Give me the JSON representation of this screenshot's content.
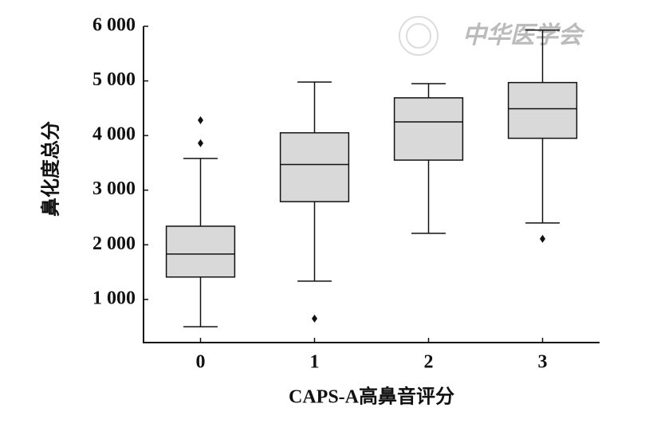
{
  "chart_data": {
    "type": "box",
    "watermark": "中华医学会",
    "xlabel": "CAPS-A高鼻音评分",
    "ylabel": "鼻化度总分",
    "categories": [
      "0",
      "1",
      "2",
      "3"
    ],
    "boxes": [
      {
        "whisker_low": 500,
        "q1": 1410,
        "median": 1830,
        "q3": 2340,
        "whisker_high": 3580,
        "outliers": [
          3860,
          4280
        ]
      },
      {
        "whisker_low": 1335,
        "q1": 2790,
        "median": 3470,
        "q3": 4050,
        "whisker_high": 4980,
        "outliers": [
          650
        ]
      },
      {
        "whisker_low": 2210,
        "q1": 3550,
        "median": 4250,
        "q3": 4690,
        "whisker_high": 4950,
        "outliers": []
      },
      {
        "whisker_low": 2400,
        "q1": 3950,
        "median": 4490,
        "q3": 4970,
        "whisker_high": 5930,
        "outliers": [
          2110
        ]
      }
    ],
    "color": "#d9d9d9",
    "ylim": [
      210,
      6000
    ],
    "yticks": [
      {
        "value": 1000,
        "label": "1 000"
      },
      {
        "value": 2000,
        "label": "2 000"
      },
      {
        "value": 3000,
        "label": "3 000"
      },
      {
        "value": 4000,
        "label": "4 000"
      },
      {
        "value": 5000,
        "label": "5 000"
      },
      {
        "value": 6000,
        "label": "6 000"
      }
    ],
    "grid": false
  }
}
